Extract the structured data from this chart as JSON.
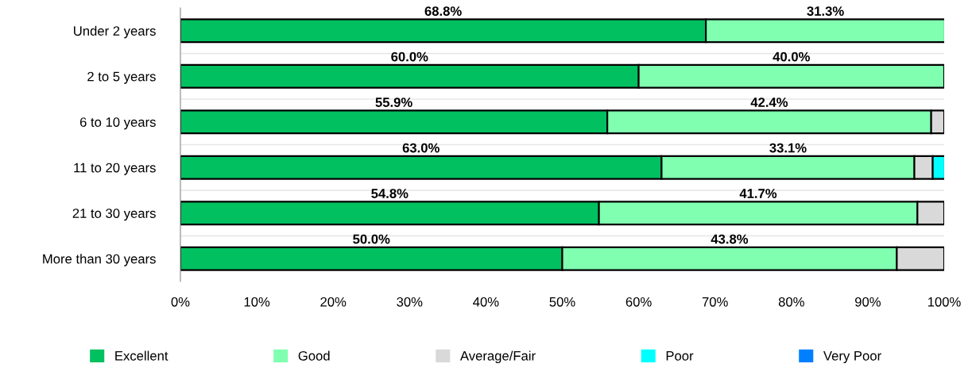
{
  "chart_data": {
    "type": "bar",
    "orientation": "horizontal",
    "stacked": true,
    "categories": [
      "Under 2 years",
      "2 to 5 years",
      "6 to 10 years",
      "11 to 20 years",
      "21 to 30 years",
      "More than 30 years"
    ],
    "series": [
      {
        "name": "Excellent",
        "color": "#00c060",
        "values": [
          68.8,
          60.0,
          55.9,
          63.0,
          54.8,
          50.0
        ],
        "value_labels": [
          "68.8%",
          "60.0%",
          "55.9%",
          "63.0%",
          "54.8%",
          "50.0%"
        ]
      },
      {
        "name": "Good",
        "color": "#80ffb0",
        "values": [
          31.3,
          40.0,
          42.4,
          33.1,
          41.7,
          43.8
        ],
        "value_labels": [
          "31.3%",
          "40.0%",
          "42.4%",
          "33.1%",
          "41.7%",
          "43.8%"
        ]
      },
      {
        "name": "Average/Fair",
        "color": "#d9d9d9",
        "values": [
          0,
          0,
          1.7,
          2.4,
          3.5,
          6.2
        ]
      },
      {
        "name": "Poor",
        "color": "#00ffff",
        "values": [
          0,
          0,
          0,
          1.6,
          0,
          0
        ]
      },
      {
        "name": "Very Poor",
        "color": "#0080ff",
        "values": [
          0,
          0,
          0,
          0,
          0,
          0
        ]
      }
    ],
    "xlim": [
      0,
      100
    ],
    "xticks": [
      {
        "value": 0,
        "label": "0%"
      },
      {
        "value": 10,
        "label": "10%"
      },
      {
        "value": 20,
        "label": "20%"
      },
      {
        "value": 30,
        "label": "30%"
      },
      {
        "value": 40,
        "label": "40%"
      },
      {
        "value": 50,
        "label": "50%"
      },
      {
        "value": 60,
        "label": "60%"
      },
      {
        "value": 70,
        "label": "70%"
      },
      {
        "value": 80,
        "label": "80%"
      },
      {
        "value": 90,
        "label": "90%"
      },
      {
        "value": 100,
        "label": "100%"
      }
    ],
    "legend": "bottom",
    "grid": false
  }
}
